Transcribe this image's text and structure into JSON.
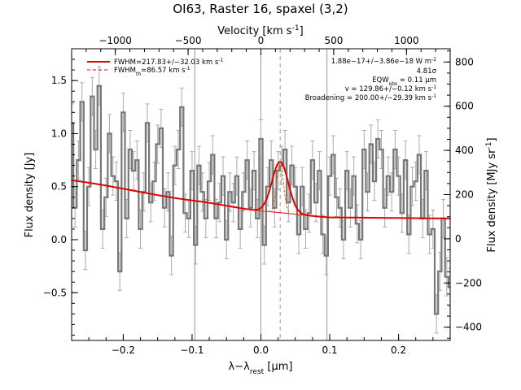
{
  "chart_data": {
    "type": "line",
    "title": "OI63, Raster 16, spaxel (3,2)",
    "xlabel": "λ−λ_rest [μm]",
    "ylabel": "Flux density [Jy]",
    "x2label": "Velocity [km s^-1]",
    "y2label": "Flux density [MJy sr^-1]",
    "xlim": [
      -0.275,
      0.275
    ],
    "ylim": [
      -0.95,
      1.8
    ],
    "x2lim": [
      -1300,
      1300
    ],
    "y2lim": [
      -460,
      860
    ],
    "x_ticks": [
      -0.2,
      -0.1,
      0.0,
      0.1,
      0.2
    ],
    "x_tick_labels": [
      "−0.2",
      "−0.1",
      "0.0",
      "0.1",
      "0.2"
    ],
    "y_ticks": [
      -0.5,
      0.0,
      0.5,
      1.0,
      1.5
    ],
    "y_tick_labels": [
      "−0.5",
      "0.0",
      "0.5",
      "1.0",
      "1.5"
    ],
    "x2_ticks": [
      -1000,
      -500,
      0,
      500,
      1000
    ],
    "x2_tick_labels": [
      "−1000",
      "−500",
      "0",
      "500",
      "1000"
    ],
    "y2_ticks": [
      -400,
      -200,
      0,
      200,
      400,
      600,
      800
    ],
    "y2_tick_labels": [
      "−400",
      "−200",
      "0",
      "200",
      "400",
      "600",
      "800"
    ],
    "vertical_lines": {
      "solid_gray": [
        -0.096,
        0.0,
        0.096
      ],
      "dashed_gray": [
        0.028
      ]
    },
    "legend": {
      "position": "top-left",
      "entries": [
        {
          "label": "FWHM=217.83+/−32.03 km s^-1",
          "style": "solid",
          "color": "#e00000"
        },
        {
          "label": "FWHM_th=86.57 km s^-1",
          "style": "dashed",
          "color": "#e00000"
        }
      ]
    },
    "annotations": [
      "1.88e−17+/−3.86e−18 W m^-2",
      "4.81σ",
      "EQW_obs = 0.11 μm",
      "v = 129.86+/−0.12 km s^-1",
      "Broadening = 200.00+/−29.39 km s^-1"
    ],
    "fit_model": {
      "name": "Gaussian + continuum",
      "center": 0.028,
      "sigma": 0.0118,
      "amplitude": 0.48,
      "continuum": {
        "x": [
          -0.275,
          -0.1,
          0.0,
          0.1,
          0.275
        ],
        "y": [
          0.56,
          0.37,
          0.27,
          0.21,
          0.2
        ]
      }
    },
    "thermal_profile": {
      "center": 0.028,
      "sigma": 0.0048,
      "amplitude": 0.48
    },
    "spectrum": {
      "x": [
        -0.275,
        -0.27,
        -0.265,
        -0.26,
        -0.255,
        -0.25,
        -0.245,
        -0.24,
        -0.235,
        -0.23,
        -0.225,
        -0.22,
        -0.215,
        -0.21,
        -0.205,
        -0.2,
        -0.195,
        -0.19,
        -0.185,
        -0.18,
        -0.175,
        -0.17,
        -0.165,
        -0.16,
        -0.155,
        -0.15,
        -0.145,
        -0.14,
        -0.135,
        -0.13,
        -0.125,
        -0.12,
        -0.115,
        -0.11,
        -0.105,
        -0.1,
        -0.095,
        -0.09,
        -0.085,
        -0.08,
        -0.075,
        -0.07,
        -0.065,
        -0.06,
        -0.055,
        -0.05,
        -0.045,
        -0.04,
        -0.035,
        -0.03,
        -0.025,
        -0.02,
        -0.015,
        -0.01,
        -0.005,
        0.0,
        0.005,
        0.01,
        0.015,
        0.02,
        0.025,
        0.03,
        0.035,
        0.04,
        0.045,
        0.05,
        0.055,
        0.06,
        0.065,
        0.07,
        0.075,
        0.08,
        0.085,
        0.09,
        0.095,
        0.1,
        0.105,
        0.11,
        0.115,
        0.12,
        0.125,
        0.13,
        0.135,
        0.14,
        0.145,
        0.15,
        0.155,
        0.16,
        0.165,
        0.17,
        0.175,
        0.18,
        0.185,
        0.19,
        0.195,
        0.2,
        0.205,
        0.21,
        0.215,
        0.22,
        0.225,
        0.23,
        0.235,
        0.24,
        0.245,
        0.25,
        0.255,
        0.26,
        0.265,
        0.27,
        0.275
      ],
      "y": [
        1.1,
        0.3,
        0.75,
        1.3,
        -0.1,
        0.5,
        1.35,
        0.85,
        1.45,
        0.1,
        0.4,
        1.0,
        0.6,
        0.55,
        -0.3,
        1.2,
        0.2,
        0.85,
        0.65,
        0.75,
        0.1,
        0.45,
        1.1,
        0.35,
        0.55,
        0.9,
        1.05,
        0.3,
        0.45,
        -0.15,
        0.7,
        0.85,
        1.25,
        0.25,
        0.2,
        0.65,
        -0.05,
        0.7,
        0.45,
        0.2,
        0.55,
        0.8,
        0.2,
        0.35,
        0.6,
        0.0,
        0.45,
        0.35,
        0.6,
        0.1,
        0.45,
        0.75,
        0.3,
        0.65,
        0.2,
        0.95,
        -0.05,
        0.5,
        0.75,
        0.3,
        0.65,
        0.7,
        0.85,
        0.35,
        0.7,
        0.5,
        0.05,
        0.5,
        0.1,
        0.25,
        0.75,
        0.35,
        0.65,
        0.05,
        -0.15,
        0.6,
        0.8,
        0.4,
        0.3,
        0.0,
        0.65,
        0.3,
        0.6,
        0.15,
        0.0,
        0.85,
        0.45,
        0.9,
        0.55,
        0.95,
        0.85,
        0.3,
        0.6,
        0.45,
        0.85,
        0.6,
        0.25,
        0.75,
        0.05,
        0.5,
        0.55,
        0.8,
        0.2,
        0.65,
        0.05,
        0.1,
        -0.7,
        -0.3,
        0.2,
        -0.35,
        -0.45
      ],
      "yerr": 0.18
    },
    "colors": {
      "spectrum": "#777777",
      "errorbar": "#aaaaaa",
      "fit": "#e00000",
      "thermal": "#d2691e",
      "refline": "#999999"
    }
  }
}
